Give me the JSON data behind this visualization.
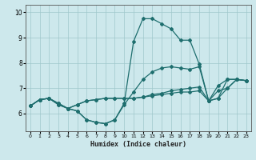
{
  "xlabel": "Humidex (Indice chaleur)",
  "bg_color": "#cde8ec",
  "grid_color": "#a0c8cc",
  "line_color": "#1e6e6e",
  "xlim": [
    -0.5,
    23.5
  ],
  "ylim": [
    5.3,
    10.3
  ],
  "xticks": [
    0,
    1,
    2,
    3,
    4,
    5,
    6,
    7,
    8,
    9,
    10,
    11,
    12,
    13,
    14,
    15,
    16,
    17,
    18,
    19,
    20,
    21,
    22,
    23
  ],
  "yticks": [
    6,
    7,
    8,
    9,
    10
  ],
  "lines": [
    {
      "x": [
        0,
        1,
        2,
        3,
        4,
        5,
        6,
        7,
        8,
        9,
        10,
        11,
        12,
        13,
        14,
        15,
        16,
        17,
        18,
        19,
        20,
        21,
        22,
        23
      ],
      "y": [
        6.3,
        6.55,
        6.6,
        6.4,
        6.2,
        6.1,
        5.75,
        5.65,
        5.6,
        5.75,
        6.4,
        8.85,
        9.75,
        9.75,
        9.55,
        9.35,
        8.9,
        8.9,
        7.95,
        6.5,
        7.1,
        7.35,
        7.35,
        7.3
      ]
    },
    {
      "x": [
        0,
        1,
        2,
        3,
        4,
        5,
        6,
        7,
        8,
        9,
        10,
        11,
        12,
        13,
        14,
        15,
        16,
        17,
        18,
        19,
        20,
        21,
        22,
        23
      ],
      "y": [
        6.3,
        6.55,
        6.6,
        6.4,
        6.2,
        6.1,
        5.75,
        5.65,
        5.6,
        5.75,
        6.35,
        6.85,
        7.35,
        7.65,
        7.8,
        7.85,
        7.8,
        7.75,
        7.85,
        6.5,
        6.6,
        7.35,
        7.35,
        7.3
      ]
    },
    {
      "x": [
        0,
        1,
        2,
        3,
        4,
        5,
        6,
        7,
        8,
        9,
        10,
        11,
        12,
        13,
        14,
        15,
        16,
        17,
        18,
        19,
        20,
        21,
        22,
        23
      ],
      "y": [
        6.3,
        6.55,
        6.6,
        6.35,
        6.2,
        6.35,
        6.5,
        6.55,
        6.6,
        6.6,
        6.6,
        6.6,
        6.65,
        6.75,
        6.8,
        6.9,
        6.95,
        7.0,
        7.05,
        6.5,
        6.6,
        7.0,
        7.35,
        7.3
      ]
    },
    {
      "x": [
        0,
        1,
        2,
        3,
        4,
        5,
        6,
        7,
        8,
        9,
        10,
        11,
        12,
        13,
        14,
        15,
        16,
        17,
        18,
        19,
        20,
        21,
        22,
        23
      ],
      "y": [
        6.3,
        6.55,
        6.6,
        6.35,
        6.2,
        6.35,
        6.5,
        6.55,
        6.6,
        6.6,
        6.6,
        6.6,
        6.65,
        6.7,
        6.75,
        6.8,
        6.85,
        6.85,
        6.9,
        6.5,
        6.9,
        7.0,
        7.35,
        7.3
      ]
    }
  ],
  "marker": "D",
  "markersize": 2.0,
  "linewidth": 0.9
}
